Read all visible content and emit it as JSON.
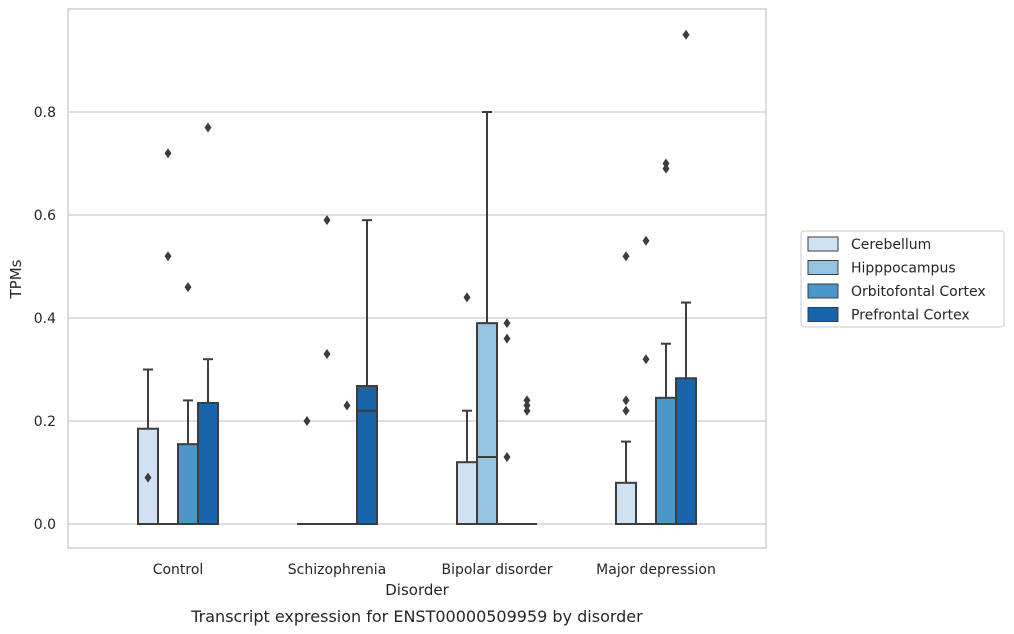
{
  "chart_data": {
    "type": "box",
    "xlabel": "Disorder",
    "ylabel": "TPMs",
    "caption": "Transcript expression for ENST00000509959 by disorder",
    "categories": [
      "Control",
      "Schizophrenia",
      "Bipolar disorder",
      "Major depression"
    ],
    "yticks": [
      0.0,
      0.2,
      0.4,
      0.6,
      0.8
    ],
    "ytick_labels": [
      "0.0",
      "0.2",
      "0.4",
      "0.6",
      "0.8"
    ],
    "ylim": [
      -0.0475,
      0.9975
    ],
    "grid": "horizontal",
    "legend_position": "right",
    "series": [
      {
        "name": "Cerebellum",
        "color": "#d0e1f2",
        "boxes": [
          {
            "q1": 0,
            "median": 0,
            "q3": 0.185,
            "whislo": 0,
            "whishi": 0.3,
            "fliers": [
              0.09
            ]
          },
          {
            "q1": 0,
            "median": 0,
            "q3": 0,
            "whislo": 0,
            "whishi": 0,
            "fliers": [
              0.2
            ]
          },
          {
            "q1": 0,
            "median": 0,
            "q3": 0.12,
            "whislo": 0,
            "whishi": 0.22,
            "fliers": [
              0.44
            ]
          },
          {
            "q1": 0,
            "median": 0,
            "q3": 0.08,
            "whislo": 0,
            "whishi": 0.16,
            "fliers": [
              0.52,
              0.24,
              0.22
            ]
          }
        ]
      },
      {
        "name": "Hipppocampus",
        "color": "#94c4df",
        "boxes": [
          {
            "q1": 0,
            "median": 0,
            "q3": 0,
            "whislo": 0,
            "whishi": 0,
            "fliers": [
              0.72,
              0.52
            ]
          },
          {
            "q1": 0,
            "median": 0,
            "q3": 0,
            "whislo": 0,
            "whishi": 0,
            "fliers": [
              0.59,
              0.33
            ]
          },
          {
            "q1": 0,
            "median": 0.13,
            "q3": 0.39,
            "whislo": 0,
            "whishi": 0.8,
            "fliers": []
          },
          {
            "q1": 0,
            "median": 0,
            "q3": 0,
            "whislo": 0,
            "whishi": 0,
            "fliers": [
              0.55,
              0.32
            ]
          }
        ]
      },
      {
        "name": "Orbitofontal Cortex",
        "color": "#4a98c9",
        "boxes": [
          {
            "q1": 0,
            "median": 0,
            "q3": 0.155,
            "whislo": 0,
            "whishi": 0.24,
            "fliers": [
              0.46
            ]
          },
          {
            "q1": 0,
            "median": 0,
            "q3": 0,
            "whislo": 0,
            "whishi": 0,
            "fliers": [
              0.23
            ]
          },
          {
            "q1": 0,
            "median": 0,
            "q3": 0,
            "whislo": 0,
            "whishi": 0,
            "fliers": [
              0.39,
              0.36,
              0.13
            ]
          },
          {
            "q1": 0,
            "median": 0,
            "q3": 0.245,
            "whislo": 0,
            "whishi": 0.35,
            "fliers": [
              0.7,
              0.69
            ]
          }
        ]
      },
      {
        "name": "Prefrontal Cortex",
        "color": "#1764ab",
        "boxes": [
          {
            "q1": 0,
            "median": 0,
            "q3": 0.235,
            "whislo": 0,
            "whishi": 0.32,
            "fliers": [
              0.77
            ]
          },
          {
            "q1": 0,
            "median": 0.22,
            "q3": 0.268,
            "whislo": 0,
            "whishi": 0.59,
            "fliers": []
          },
          {
            "q1": 0,
            "median": 0,
            "q3": 0,
            "whislo": 0,
            "whishi": 0,
            "fliers": [
              0.24,
              0.23,
              0.22
            ]
          },
          {
            "q1": 0,
            "median": 0,
            "q3": 0.283,
            "whislo": 0,
            "whishi": 0.43,
            "fliers": [
              0.95
            ]
          }
        ]
      }
    ]
  }
}
